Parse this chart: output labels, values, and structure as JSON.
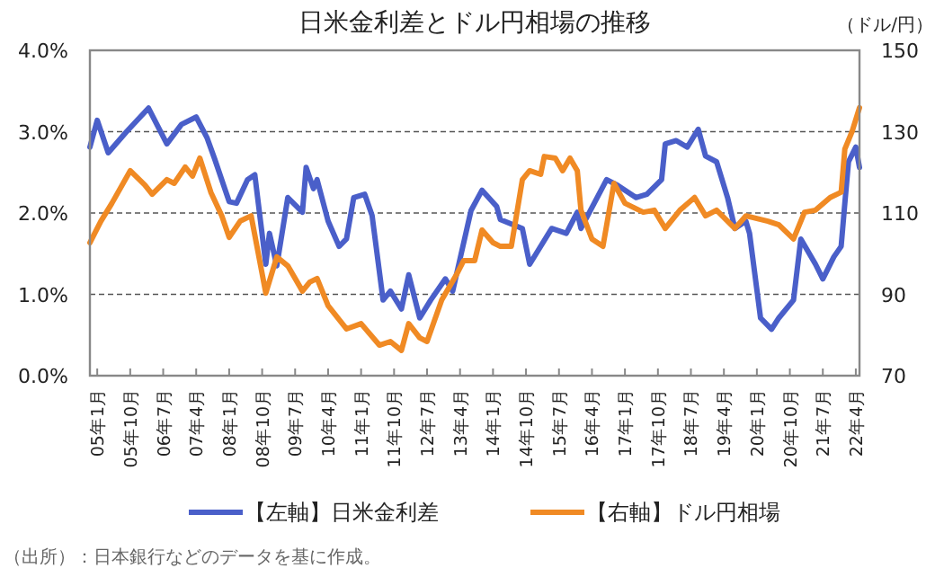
{
  "chart_data": {
    "type": "line",
    "title": "日米金利差とドル円相場の推移",
    "y2label": "（ドル/円）",
    "xlim": [
      "2004-11",
      "2022-05"
    ],
    "xticks": [
      {
        "value": "2005-01",
        "label": "05年1月"
      },
      {
        "value": "2005-10",
        "label": "05年10月"
      },
      {
        "value": "2006-07",
        "label": "06年7月"
      },
      {
        "value": "2007-04",
        "label": "07年4月"
      },
      {
        "value": "2008-01",
        "label": "08年1月"
      },
      {
        "value": "2008-10",
        "label": "08年10月"
      },
      {
        "value": "2009-07",
        "label": "09年7月"
      },
      {
        "value": "2010-04",
        "label": "10年4月"
      },
      {
        "value": "2011-01",
        "label": "11年1月"
      },
      {
        "value": "2011-10",
        "label": "11年10月"
      },
      {
        "value": "2012-07",
        "label": "12年7月"
      },
      {
        "value": "2013-04",
        "label": "13年4月"
      },
      {
        "value": "2014-01",
        "label": "14年1月"
      },
      {
        "value": "2014-10",
        "label": "14年10月"
      },
      {
        "value": "2015-07",
        "label": "15年7月"
      },
      {
        "value": "2016-04",
        "label": "16年4月"
      },
      {
        "value": "2017-01",
        "label": "17年1月"
      },
      {
        "value": "2017-10",
        "label": "17年10月"
      },
      {
        "value": "2018-07",
        "label": "18年7月"
      },
      {
        "value": "2019-04",
        "label": "19年4月"
      },
      {
        "value": "2020-01",
        "label": "20年1月"
      },
      {
        "value": "2020-10",
        "label": "20年10月"
      },
      {
        "value": "2021-07",
        "label": "21年7月"
      },
      {
        "value": "2022-04",
        "label": "22年4月"
      }
    ],
    "ylim": [
      0,
      4
    ],
    "yticks": [
      {
        "value": 0,
        "label": "0.0%"
      },
      {
        "value": 1,
        "label": "1.0%"
      },
      {
        "value": 2,
        "label": "2.0%"
      },
      {
        "value": 3,
        "label": "3.0%"
      },
      {
        "value": 4,
        "label": "4.0%"
      }
    ],
    "y2lim": [
      70,
      150
    ],
    "y2ticks": [
      70,
      90,
      110,
      130,
      150
    ],
    "grid": "y",
    "legend": "bottom",
    "line_style": "solid",
    "series": [
      {
        "name": "【左軸】日米金利差",
        "color": "#4a5fc9",
        "axis": "y",
        "x": [
          "2004-11",
          "2005-01",
          "2005-04",
          "2005-09",
          "2006-03",
          "2006-08",
          "2006-12",
          "2007-04",
          "2007-07",
          "2007-09",
          "2008-01",
          "2008-03",
          "2008-06",
          "2008-08",
          "2008-11",
          "2008-12",
          "2009-02",
          "2009-05",
          "2009-09",
          "2009-10",
          "2009-12",
          "2010-01",
          "2010-04",
          "2010-07",
          "2010-09",
          "2010-11",
          "2011-02",
          "2011-04",
          "2011-07",
          "2011-09",
          "2011-12",
          "2012-02",
          "2012-05",
          "2012-08",
          "2012-12",
          "2013-02",
          "2013-07",
          "2013-10",
          "2014-02",
          "2014-03",
          "2014-09",
          "2014-11",
          "2015-05",
          "2015-09",
          "2015-12",
          "2016-01",
          "2016-08",
          "2016-11",
          "2017-04",
          "2017-07",
          "2017-11",
          "2017-12",
          "2018-03",
          "2018-06",
          "2018-09",
          "2018-11",
          "2019-02",
          "2019-05",
          "2019-07",
          "2019-10",
          "2019-11",
          "2020-02",
          "2020-05",
          "2020-07",
          "2020-11",
          "2021-01",
          "2021-05",
          "2021-07",
          "2021-10",
          "2021-12",
          "2022-01",
          "2022-02",
          "2022-04",
          "2022-05"
        ],
        "values": [
          2.81,
          3.14,
          2.74,
          3.0,
          3.29,
          2.85,
          3.09,
          3.18,
          2.92,
          2.67,
          2.14,
          2.12,
          2.41,
          2.47,
          1.37,
          1.75,
          1.35,
          2.19,
          2.01,
          2.56,
          2.3,
          2.41,
          1.9,
          1.59,
          1.68,
          2.19,
          2.23,
          1.97,
          0.93,
          1.04,
          0.82,
          1.24,
          0.71,
          0.93,
          1.19,
          1.04,
          2.03,
          2.28,
          2.08,
          1.92,
          1.81,
          1.37,
          1.81,
          1.75,
          2.01,
          1.81,
          2.41,
          2.34,
          2.19,
          2.23,
          2.41,
          2.85,
          2.89,
          2.81,
          3.03,
          2.7,
          2.63,
          2.19,
          1.81,
          1.9,
          1.75,
          0.71,
          0.57,
          0.71,
          0.93,
          1.68,
          1.37,
          1.19,
          1.46,
          1.59,
          2.12,
          2.63,
          2.81,
          2.56
        ]
      },
      {
        "name": "【右軸】ドル円相場",
        "color": "#f08a24",
        "axis": "y2",
        "x": [
          "2004-11",
          "2005-02",
          "2005-05",
          "2005-10",
          "2006-02",
          "2006-04",
          "2006-08",
          "2006-10",
          "2007-01",
          "2007-03",
          "2007-05",
          "2007-08",
          "2007-11",
          "2008-01",
          "2008-04",
          "2008-07",
          "2008-11",
          "2009-02",
          "2009-05",
          "2009-09",
          "2009-11",
          "2010-01",
          "2010-04",
          "2010-09",
          "2011-01",
          "2011-06",
          "2011-09",
          "2011-12",
          "2012-02",
          "2012-05",
          "2012-07",
          "2012-11",
          "2013-03",
          "2013-05",
          "2013-08",
          "2013-10",
          "2014-01",
          "2014-03",
          "2014-06",
          "2014-09",
          "2014-11",
          "2015-02",
          "2015-03",
          "2015-06",
          "2015-08",
          "2015-10",
          "2015-12",
          "2016-01",
          "2016-04",
          "2016-07",
          "2016-10",
          "2017-01",
          "2017-06",
          "2017-09",
          "2017-12",
          "2018-04",
          "2018-08",
          "2018-11",
          "2019-02",
          "2019-07",
          "2019-10",
          "2020-04",
          "2020-07",
          "2020-11",
          "2021-02",
          "2021-05",
          "2021-09",
          "2021-12",
          "2022-01",
          "2022-03",
          "2022-05"
        ],
        "values": [
          102.7,
          108.0,
          112.4,
          120.4,
          116.9,
          114.6,
          118.2,
          117.3,
          121.3,
          119.1,
          123.5,
          115.1,
          109.3,
          104.0,
          108.0,
          109.3,
          90.3,
          99.2,
          97.0,
          90.8,
          93.0,
          93.9,
          87.2,
          81.5,
          82.8,
          77.5,
          78.4,
          76.2,
          82.8,
          79.3,
          78.4,
          88.6,
          94.8,
          98.3,
          98.3,
          105.8,
          102.7,
          101.8,
          101.8,
          118.2,
          120.4,
          119.5,
          123.9,
          123.5,
          120.4,
          123.5,
          120.4,
          110.7,
          103.6,
          101.8,
          117.3,
          112.4,
          110.2,
          110.7,
          106.2,
          110.7,
          113.8,
          109.3,
          110.7,
          106.2,
          109.3,
          108.0,
          107.1,
          103.6,
          110.2,
          110.7,
          113.8,
          115.1,
          125.7,
          130.1,
          135.9
        ]
      }
    ],
    "annotations": [
      "（出所）：日本銀行などのデータを基に作成。"
    ]
  }
}
